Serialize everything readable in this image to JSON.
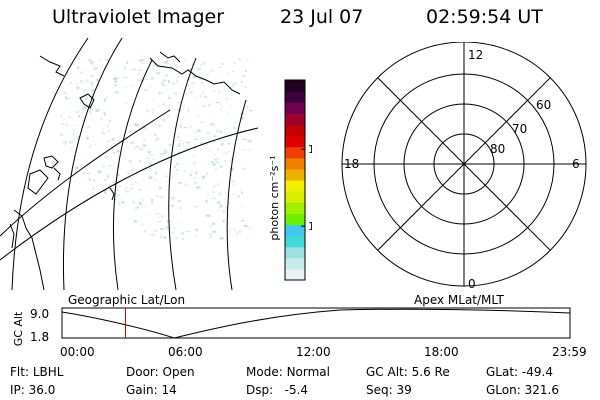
{
  "header": {
    "instrument": "Ultraviolet Imager",
    "date": "23 Jul 07",
    "time": "02:59:54 UT"
  },
  "geo_panel": {
    "label": "Geographic Lat/Lon"
  },
  "colorbar": {
    "label": "photon cm⁻²s⁻¹",
    "ticks": [
      {
        "label": "100",
        "value": 100
      },
      {
        "label": "10",
        "value": 10
      }
    ],
    "colors": [
      "#e8f4f4",
      "#c8ecec",
      "#9ee0e0",
      "#40d8d8",
      "#40c8f0",
      "#6cf000",
      "#a0f000",
      "#d8f000",
      "#f0f000",
      "#f0b000",
      "#f08000",
      "#f04000",
      "#e00000",
      "#c00000",
      "#a00030",
      "#700050",
      "#400040",
      "#200020"
    ]
  },
  "polar_panel": {
    "label": "Apex MLat/MLT",
    "mlt_labels": {
      "top": "12",
      "left": "18",
      "right": "6",
      "bottom": "0"
    },
    "lat_labels": [
      {
        "label": "60",
        "value": 60
      },
      {
        "label": "70",
        "value": 70
      },
      {
        "label": "80",
        "value": 80
      }
    ]
  },
  "altitude_plot": {
    "ylabel": "GC Alt",
    "yticks": [
      "9.0",
      "1.8"
    ],
    "xticks": [
      "00:00",
      "06:00",
      "12:00",
      "18:00",
      "23:59"
    ],
    "current_time_hours": 3.0
  },
  "footer": {
    "filter_label": "Flt:",
    "filter_value": "LBHL",
    "door_label": "Door:",
    "door_value": "Open",
    "mode_label": "Mode:",
    "mode_value": "Normal",
    "gcalt_label": "GC Alt:",
    "gcalt_value": "5.6 Re",
    "glat_label": "GLat:",
    "glat_value": "-49.4",
    "ip_label": "IP:",
    "ip_value": "36.0",
    "gain_label": "Gain:",
    "gain_value": "14",
    "dsp_label": "Dsp:",
    "dsp_value": "-5.4",
    "seq_label": "Seq:",
    "seq_value": "39",
    "glon_label": "GLon:",
    "glon_value": "321.6"
  }
}
